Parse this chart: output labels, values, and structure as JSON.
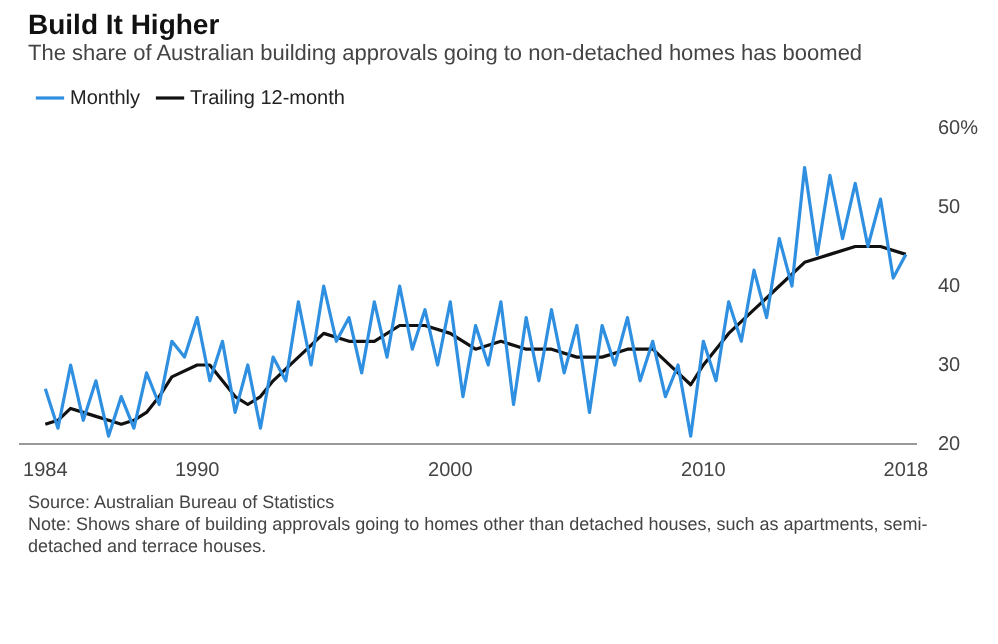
{
  "chart_data": {
    "type": "line",
    "title": "Build It Higher",
    "subtitle": "The share of Australian building approvals going to non-detached homes has boomed",
    "x": [
      1984,
      1984.5,
      1985,
      1985.5,
      1986,
      1986.5,
      1987,
      1987.5,
      1988,
      1988.5,
      1989,
      1989.5,
      1990,
      1990.5,
      1991,
      1991.5,
      1992,
      1992.5,
      1993,
      1993.5,
      1994,
      1994.5,
      1995,
      1995.5,
      1996,
      1996.5,
      1997,
      1997.5,
      1998,
      1998.5,
      1999,
      1999.5,
      2000,
      2000.5,
      2001,
      2001.5,
      2002,
      2002.5,
      2003,
      2003.5,
      2004,
      2004.5,
      2005,
      2005.5,
      2006,
      2006.5,
      2007,
      2007.5,
      2008,
      2008.5,
      2009,
      2009.5,
      2010,
      2010.5,
      2011,
      2011.5,
      2012,
      2012.5,
      2013,
      2013.5,
      2014,
      2014.5,
      2015,
      2015.5,
      2016,
      2016.5,
      2017,
      2017.5,
      2018
    ],
    "series": [
      {
        "name": "Monthly",
        "color": "#2f8fe0",
        "values": [
          27,
          22,
          30,
          23,
          28,
          21,
          26,
          22,
          29,
          25,
          33,
          31,
          36,
          28,
          33,
          24,
          30,
          22,
          31,
          28,
          38,
          30,
          40,
          33,
          36,
          29,
          38,
          31,
          40,
          32,
          37,
          30,
          38,
          26,
          35,
          30,
          38,
          25,
          36,
          28,
          37,
          29,
          35,
          24,
          35,
          30,
          36,
          28,
          33,
          26,
          30,
          21,
          33,
          28,
          38,
          33,
          42,
          36,
          46,
          40,
          55,
          44,
          54,
          46,
          53,
          45,
          51,
          41,
          44
        ]
      },
      {
        "name": "Trailing 12-month",
        "color": "#111111",
        "x": [
          1984,
          1984.5,
          1985,
          1985.5,
          1986,
          1986.5,
          1987,
          1987.5,
          1988,
          1988.5,
          1989,
          1990,
          1990.5,
          1991,
          1991.5,
          1992,
          1992.5,
          1993,
          1994,
          1995,
          1996,
          1997,
          1998,
          1999,
          2000,
          2001,
          2002,
          2003,
          2004,
          2005,
          2006,
          2007,
          2008,
          2009,
          2009.5,
          2010,
          2011,
          2012,
          2013,
          2014,
          2015,
          2016,
          2017,
          2018
        ],
        "values": [
          22.5,
          23,
          24.5,
          24,
          23.5,
          23,
          22.5,
          23,
          24,
          26,
          28.5,
          30,
          30,
          28,
          26,
          25,
          26,
          28,
          31,
          34,
          33,
          33,
          35,
          35,
          34,
          32,
          33,
          32,
          32,
          31,
          31,
          32,
          32,
          29,
          27.5,
          30,
          34,
          37,
          40,
          43,
          44,
          45,
          45,
          44
        ]
      }
    ],
    "xlim": [
      1983,
      2018.4
    ],
    "xticks": [
      1984,
      1990,
      2000,
      2010,
      2018
    ],
    "ylim": [
      20,
      60
    ],
    "yticks": [
      20,
      30,
      40,
      50,
      {
        "value": 60,
        "label": "60%"
      }
    ],
    "grid": false,
    "legend": "top left",
    "marker": "none",
    "line_style": "solid",
    "annotations": [
      "Source: Australian Bureau of Statistics",
      "Note: Shows share of building approvals going to homes other than detached houses, such as apartments, semi-detached and terrace houses."
    ]
  }
}
